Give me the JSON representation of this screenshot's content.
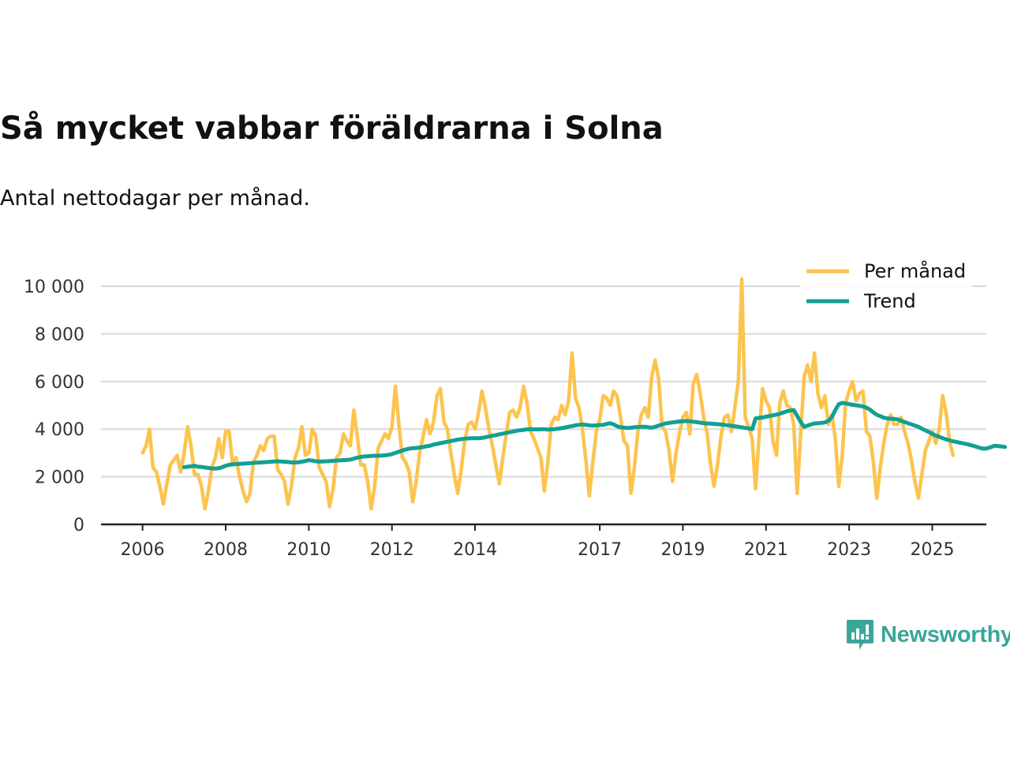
{
  "title": "Så mycket vabbar föräldrarna i Solna",
  "subtitle": "Antal nettodagar per månad.",
  "brand": {
    "name": "Newsworthy",
    "icon": "newsworthy-logo-icon",
    "color": "#3aa69a"
  },
  "colors": {
    "monthly": "#fcc44e",
    "trend": "#12a092",
    "grid": "#d9d9d9",
    "axis": "#222222"
  },
  "chart_data": {
    "type": "line",
    "title": "Så mycket vabbar föräldrarna i Solna",
    "subtitle": "Antal nettodagar per månad.",
    "xlabel": "",
    "ylabel": "",
    "xlim": [
      2005.0,
      2026.3
    ],
    "ylim": [
      0,
      10000
    ],
    "y_ticks": [
      0,
      2000,
      4000,
      6000,
      8000,
      10000
    ],
    "y_tick_labels": [
      "0",
      "2 000",
      "4 000",
      "6 000",
      "8 000",
      "10 000"
    ],
    "x_ticks": [
      2006,
      2008,
      2010,
      2012,
      2014,
      2017,
      2019,
      2021,
      2023,
      2025
    ],
    "x_tick_labels": [
      "2006",
      "2008",
      "2010",
      "2012",
      "2014",
      "2017",
      "2019",
      "2021",
      "2023",
      "2025"
    ],
    "grid": true,
    "legend": "top-right",
    "x_start": 2006.0,
    "x_step": 0.08333,
    "series": [
      {
        "name": "Per månad",
        "values": [
          3000,
          3300,
          4000,
          2400,
          2200,
          1600,
          850,
          1700,
          2500,
          2700,
          2900,
          2200,
          3000,
          4100,
          3300,
          2100,
          2100,
          1600,
          650,
          1400,
          2400,
          2800,
          3600,
          2800,
          3900,
          3900,
          2500,
          2800,
          2000,
          1400,
          950,
          1300,
          2600,
          2900,
          3300,
          3100,
          3600,
          3700,
          3700,
          2300,
          2100,
          1800,
          850,
          1600,
          2800,
          3200,
          4100,
          2900,
          3000,
          4000,
          3700,
          2400,
          2100,
          1800,
          750,
          1500,
          2800,
          3000,
          3800,
          3500,
          3300,
          4800,
          3700,
          2500,
          2500,
          1800,
          650,
          1600,
          3200,
          3500,
          3800,
          3600,
          4100,
          5800,
          4200,
          2800,
          2600,
          2200,
          950,
          1800,
          3000,
          3700,
          4400,
          3800,
          4300,
          5400,
          5700,
          4300,
          4000,
          3000,
          2100,
          1300,
          2300,
          3500,
          4200,
          4300,
          4000,
          4700,
          5600,
          4900,
          4000,
          3300,
          2500,
          1700,
          2800,
          3800,
          4700,
          4800,
          4500,
          4900,
          5800,
          5100,
          3900,
          3600,
          3200,
          2800,
          1400,
          2600,
          4200,
          4500,
          4400,
          5000,
          4600,
          5200,
          7200,
          5300,
          4900,
          4000,
          2700,
          1200,
          2600,
          3900,
          4400,
          5400,
          5300,
          5000,
          5600,
          5400,
          4500,
          3500,
          3300,
          1300,
          2400,
          3900,
          4600,
          4900,
          4500,
          6200,
          6900,
          6100,
          4100,
          3900,
          3100,
          1800,
          3000,
          3800,
          4500,
          4700,
          3800,
          5900,
          6300,
          5500,
          4500,
          3800,
          2500,
          1600,
          2500,
          3700,
          4500,
          4600,
          3900,
          4900,
          6000,
          10300,
          4500,
          4100,
          3600,
          1500,
          3700,
          5700,
          5200,
          4900,
          3500,
          2900,
          5100,
          5600,
          5000,
          4900,
          4200,
          1300,
          3800,
          6200,
          6700,
          6000,
          7200,
          5500,
          4900,
          5400,
          4200,
          4600,
          3600,
          1600,
          2900,
          5100,
          5600,
          6000,
          5200,
          5500,
          5600,
          3900,
          3700,
          2600,
          1100,
          2400,
          3400,
          4200,
          4600,
          4200,
          4200,
          4500,
          3900,
          3400,
          2700,
          1800,
          1100,
          2100,
          3100,
          3500,
          3900,
          3400,
          4000,
          5400,
          4700,
          3500,
          2900
        ]
      },
      {
        "name": "Trend",
        "x_start": 2007.0,
        "values": [
          2400,
          2420,
          2440,
          2460,
          2420,
          2410,
          2390,
          2370,
          2350,
          2340,
          2360,
          2400,
          2460,
          2500,
          2520,
          2530,
          2540,
          2550,
          2560,
          2570,
          2580,
          2590,
          2600,
          2610,
          2620,
          2630,
          2640,
          2650,
          2640,
          2630,
          2620,
          2600,
          2600,
          2610,
          2630,
          2660,
          2700,
          2680,
          2650,
          2640,
          2640,
          2650,
          2660,
          2670,
          2680,
          2690,
          2700,
          2710,
          2720,
          2760,
          2800,
          2830,
          2850,
          2860,
          2870,
          2880,
          2880,
          2890,
          2900,
          2920,
          2950,
          3000,
          3050,
          3100,
          3150,
          3180,
          3200,
          3210,
          3230,
          3250,
          3280,
          3300,
          3350,
          3380,
          3410,
          3440,
          3470,
          3500,
          3530,
          3560,
          3580,
          3600,
          3610,
          3620,
          3620,
          3620,
          3630,
          3660,
          3690,
          3720,
          3750,
          3780,
          3810,
          3840,
          3870,
          3900,
          3930,
          3950,
          3970,
          3990,
          4000,
          3990,
          3990,
          3990,
          4000,
          3980,
          3990,
          4000,
          4020,
          4040,
          4070,
          4100,
          4130,
          4160,
          4180,
          4200,
          4180,
          4160,
          4150,
          4160,
          4170,
          4180,
          4220,
          4250,
          4200,
          4120,
          4080,
          4060,
          4050,
          4060,
          4080,
          4090,
          4100,
          4100,
          4080,
          4060,
          4100,
          4150,
          4200,
          4240,
          4260,
          4280,
          4300,
          4320,
          4330,
          4340,
          4330,
          4310,
          4290,
          4270,
          4250,
          4240,
          4230,
          4220,
          4210,
          4200,
          4180,
          4160,
          4140,
          4120,
          4100,
          4080,
          4050,
          4030,
          4000,
          4450,
          4470,
          4490,
          4520,
          4550,
          4580,
          4610,
          4650,
          4700,
          4750,
          4780,
          4800,
          4560,
          4300,
          4100,
          4150,
          4200,
          4240,
          4250,
          4260,
          4280,
          4350,
          4500,
          4800,
          5050,
          5100,
          5080,
          5050,
          5020,
          5000,
          4980,
          4950,
          4900,
          4820,
          4700,
          4600,
          4550,
          4480,
          4450,
          4440,
          4430,
          4410,
          4350,
          4300,
          4250,
          4200,
          4150,
          4100,
          4020,
          3950,
          3880,
          3800,
          3730,
          3680,
          3620,
          3570,
          3530,
          3490,
          3460,
          3430,
          3400,
          3370,
          3330,
          3290,
          3250,
          3200,
          3180,
          3200,
          3250,
          3300,
          3290,
          3270,
          3250
        ]
      }
    ]
  }
}
